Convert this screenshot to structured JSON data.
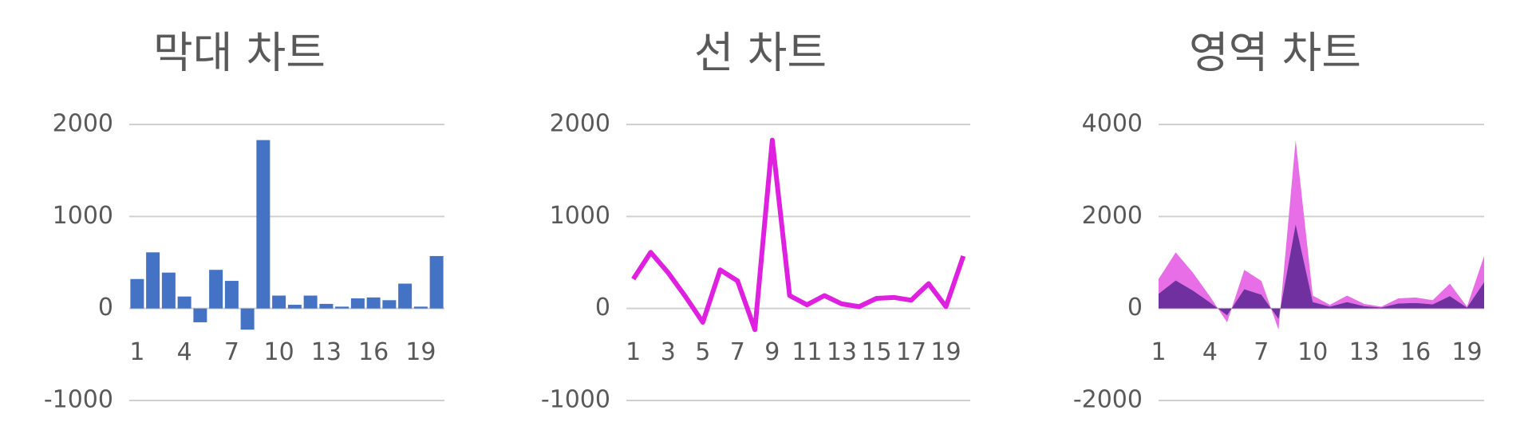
{
  "chart_data": [
    {
      "type": "bar",
      "title": "막대 차트",
      "categories": [
        "1",
        null,
        null,
        "4",
        null,
        null,
        "7",
        null,
        null,
        "10",
        null,
        null,
        "13",
        null,
        null,
        "16",
        null,
        null,
        "19",
        null
      ],
      "values": [
        320,
        610,
        390,
        130,
        -150,
        420,
        300,
        -230,
        1830,
        140,
        40,
        140,
        50,
        20,
        110,
        120,
        90,
        270,
        20,
        570
      ],
      "color": "#4472c4",
      "ylim": [
        -1000,
        2000
      ],
      "yticks": [
        -1000,
        0,
        1000,
        2000
      ],
      "grid": true
    },
    {
      "type": "line",
      "title": "선 차트",
      "x": [
        1,
        2,
        3,
        4,
        5,
        6,
        7,
        8,
        9,
        10,
        11,
        12,
        13,
        14,
        15,
        16,
        17,
        18,
        19,
        20
      ],
      "values": [
        320,
        610,
        390,
        130,
        -150,
        420,
        300,
        -230,
        1830,
        140,
        40,
        140,
        50,
        20,
        110,
        120,
        90,
        270,
        20,
        570
      ],
      "color": "#e020e0",
      "xlim": [
        0.6,
        20.4
      ],
      "xticks": [
        1,
        3,
        5,
        7,
        9,
        11,
        13,
        15,
        17,
        19
      ],
      "ylim": [
        -1000,
        2000
      ],
      "yticks": [
        -1000,
        0,
        1000,
        2000
      ],
      "grid": true
    },
    {
      "type": "area",
      "title": "영역 차트",
      "x": [
        1,
        2,
        3,
        4,
        5,
        6,
        7,
        8,
        9,
        10,
        11,
        12,
        13,
        14,
        15,
        16,
        17,
        18,
        19,
        20
      ],
      "series": [
        {
          "color": "#7030a0",
          "values": [
            320,
            610,
            390,
            130,
            -150,
            420,
            300,
            -230,
            1830,
            140,
            40,
            140,
            50,
            20,
            110,
            120,
            90,
            270,
            20,
            570
          ]
        },
        {
          "color": "#e86ee8",
          "values": [
            320,
            610,
            390,
            130,
            -150,
            420,
            300,
            -230,
            1830,
            140,
            40,
            140,
            50,
            20,
            110,
            120,
            90,
            270,
            20,
            570
          ]
        }
      ],
      "xlim": [
        1,
        20
      ],
      "xticks": [
        1,
        4,
        7,
        10,
        13,
        16,
        19
      ],
      "ylim": [
        -2000,
        4000
      ],
      "yticks": [
        -2000,
        0,
        2000,
        4000
      ],
      "grid": true
    }
  ]
}
